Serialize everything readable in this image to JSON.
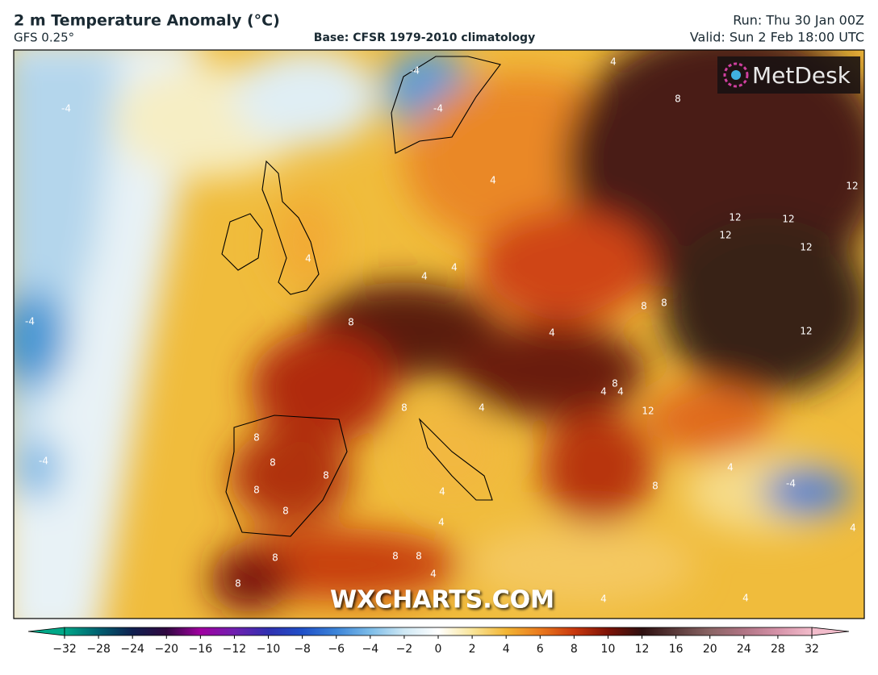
{
  "header": {
    "title": "2 m Temperature Anomaly (°C)",
    "model": "GFS 0.25°",
    "base": "Base: CFSR 1979-2010 climatology",
    "run": "Run: Thu 30 Jan 00Z",
    "valid": "Valid: Sun 2 Feb 18:00 UTC"
  },
  "logo": "MetDesk",
  "watermark": "WXCHARTS.COM",
  "contour_labels": [
    "-4",
    "-4",
    "-4",
    "4",
    "8",
    "12",
    "12",
    "12",
    "12",
    "12",
    "4",
    "4",
    "4",
    "4",
    "-4",
    "8",
    "4",
    "8",
    "8",
    "12",
    "8",
    "4",
    "4",
    "12",
    "4",
    "8",
    "8",
    "8",
    "-4",
    "8",
    "8",
    "8",
    "4",
    "4",
    "-4",
    "4",
    "8",
    "8",
    "8",
    "8",
    "8",
    "4",
    "4",
    "4",
    "4"
  ],
  "colorbar": {
    "ticks": [
      {
        "value": -32,
        "label": "−32"
      },
      {
        "value": -28,
        "label": "−28"
      },
      {
        "value": -24,
        "label": "−24"
      },
      {
        "value": -20,
        "label": "−20"
      },
      {
        "value": -16,
        "label": "−16"
      },
      {
        "value": -12,
        "label": "−12"
      },
      {
        "value": -10,
        "label": "−10"
      },
      {
        "value": -8,
        "label": "−8"
      },
      {
        "value": -6,
        "label": "−6"
      },
      {
        "value": -4,
        "label": "−4"
      },
      {
        "value": -2,
        "label": "−2"
      },
      0,
      2,
      4,
      6,
      8,
      10,
      12,
      16,
      20,
      24,
      28,
      32
    ],
    "colors": [
      "#00a888",
      "#006070",
      "#102050",
      "#300840",
      "#a000a0",
      "#7020b0",
      "#3030b0",
      "#2050c8",
      "#3c84d8",
      "#7cbce8",
      "#cfe8f4",
      "#ffffff",
      "#f9e59a",
      "#f2b534",
      "#ea7a1e",
      "#c9380e",
      "#7d1206",
      "#2e1010",
      "#5a3a3a",
      "#8a6464",
      "#b07484",
      "#d592a8",
      "#f2bccb"
    ]
  }
}
